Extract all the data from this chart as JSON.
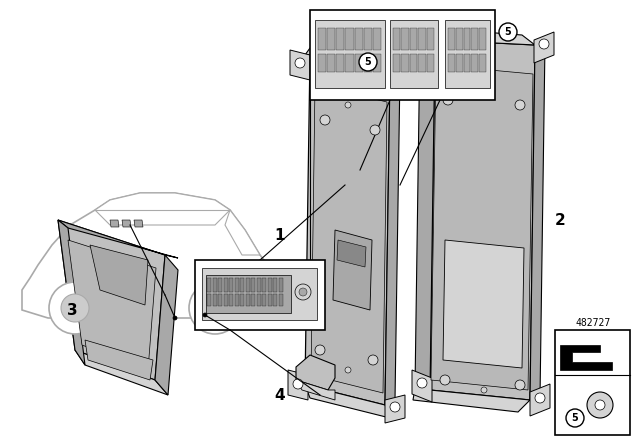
{
  "bg_color": "#ffffff",
  "part_number": "482727",
  "lc": "#000000",
  "gray1": "#c0c0c0",
  "gray2": "#a8a8a8",
  "gray3": "#d4d4d4",
  "gray4": "#b8b8b8",
  "gray5": "#888888",
  "gray6": "#e0e0e0"
}
